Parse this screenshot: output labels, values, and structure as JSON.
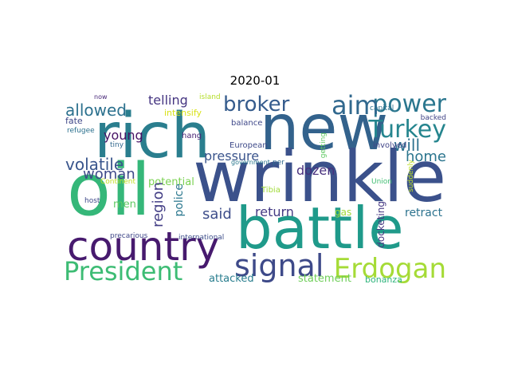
{
  "title": "2020-01",
  "words": [
    {
      "text": "rich",
      "color": "#2a7e8e"
    },
    {
      "text": "new",
      "color": "#33628c"
    },
    {
      "text": "wrinkle",
      "color": "#3b518b"
    },
    {
      "text": "oil",
      "color": "#35b779"
    },
    {
      "text": "battle",
      "color": "#1f9a8a"
    },
    {
      "text": "country",
      "color": "#471a6e"
    },
    {
      "text": "President",
      "color": "#3dbc74"
    },
    {
      "text": "signal",
      "color": "#3e4a89"
    },
    {
      "text": "Erdogan",
      "color": "#a5db36"
    },
    {
      "text": "Turkey",
      "color": "#25858e"
    },
    {
      "text": "power",
      "color": "#2a768e"
    },
    {
      "text": "aim",
      "color": "#31688e"
    },
    {
      "text": "broker",
      "color": "#365c8d"
    },
    {
      "text": "allowed",
      "color": "#2c718e"
    },
    {
      "text": "telling",
      "color": "#453581"
    },
    {
      "text": "will",
      "color": "#2d708e"
    },
    {
      "text": "home",
      "color": "#2b758e"
    },
    {
      "text": "volatile",
      "color": "#39558c"
    },
    {
      "text": "woman",
      "color": "#3e4989"
    },
    {
      "text": "young",
      "color": "#471365"
    },
    {
      "text": "potential",
      "color": "#7ad151"
    },
    {
      "text": "pressure",
      "color": "#3a548c"
    },
    {
      "text": "dozen",
      "color": "#472f7d"
    },
    {
      "text": "region",
      "color": "#433e85"
    },
    {
      "text": "police",
      "color": "#2a778e"
    },
    {
      "text": "said",
      "color": "#3d4d8a"
    },
    {
      "text": "return",
      "color": "#443a83"
    },
    {
      "text": "retract",
      "color": "#2c728e"
    },
    {
      "text": "men",
      "color": "#5ec962"
    },
    {
      "text": "gas",
      "color": "#a0da39"
    },
    {
      "text": "docketing",
      "color": "#453882"
    },
    {
      "text": "attacked",
      "color": "#287d8e"
    },
    {
      "text": "statement",
      "color": "#6ece58"
    },
    {
      "text": "bonanza",
      "color": "#2fb47c"
    },
    {
      "text": "intensify",
      "color": "#d8e219"
    },
    {
      "text": "island",
      "color": "#b5de2b"
    },
    {
      "text": "capital",
      "color": "#2c728e"
    },
    {
      "text": "backed",
      "color": "#414487"
    },
    {
      "text": "now",
      "color": "#482878"
    },
    {
      "text": "fate",
      "color": "#3f4788"
    },
    {
      "text": "balance",
      "color": "#3f4889"
    },
    {
      "text": "refugee",
      "color": "#2c718e"
    },
    {
      "text": "hang",
      "color": "#482475"
    },
    {
      "text": "getting",
      "color": "#5ec962"
    },
    {
      "text": "involved",
      "color": "#404588"
    },
    {
      "text": "tiny",
      "color": "#31688e"
    },
    {
      "text": "European",
      "color": "#3e4a89"
    },
    {
      "text": "suddenly",
      "color": "#bddf26"
    },
    {
      "text": "government",
      "color": "#2a788e"
    },
    {
      "text": "per",
      "color": "#31688e"
    },
    {
      "text": "Continent",
      "color": "#c2df23"
    },
    {
      "text": "Tibia",
      "color": "#a0da39"
    },
    {
      "text": "Union",
      "color": "#40bd72"
    },
    {
      "text": "host",
      "color": "#3e4989"
    },
    {
      "text": "precarious",
      "color": "#3f4788"
    },
    {
      "text": "international",
      "color": "#3d4e8a"
    }
  ]
}
